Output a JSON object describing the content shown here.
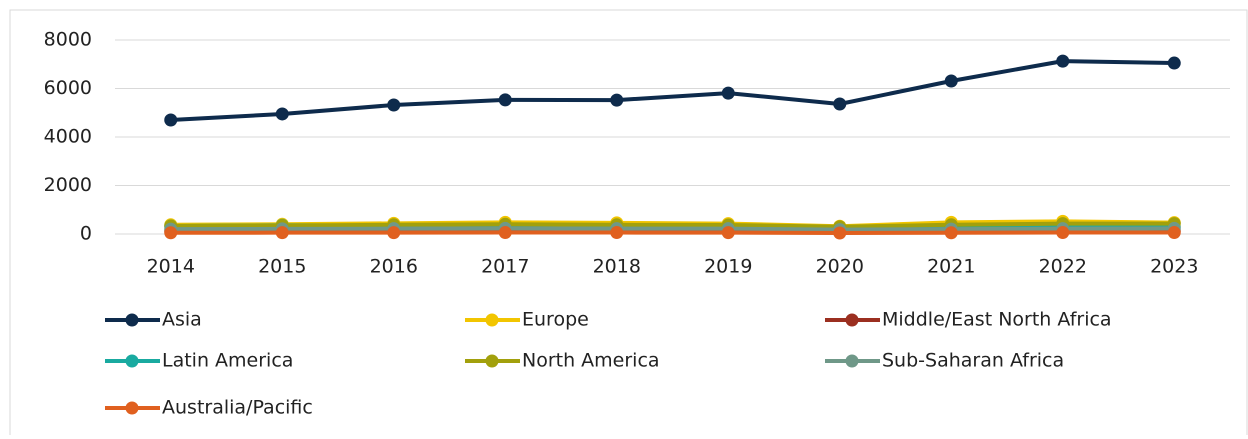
{
  "chart_data": {
    "type": "line",
    "categories": [
      "2014",
      "2015",
      "2016",
      "2017",
      "2018",
      "2019",
      "2020",
      "2021",
      "2022",
      "2023"
    ],
    "series": [
      {
        "name": "Asia",
        "color": "#0e2b4c",
        "values": [
          4700,
          4950,
          5320,
          5530,
          5520,
          5810,
          5360,
          6310,
          7130,
          7050
        ]
      },
      {
        "name": "Europe",
        "color": "#f2c500",
        "values": [
          380,
          400,
          440,
          480,
          460,
          430,
          320,
          480,
          520,
          470
        ]
      },
      {
        "name": "Middle/East North Africa",
        "color": "#9b2f20",
        "values": [
          120,
          130,
          130,
          140,
          140,
          130,
          100,
          120,
          130,
          130
        ]
      },
      {
        "name": "Latin America",
        "color": "#19aaa0",
        "values": [
          330,
          360,
          340,
          330,
          320,
          310,
          260,
          300,
          310,
          300
        ]
      },
      {
        "name": "North America",
        "color": "#a2a00c",
        "values": [
          330,
          350,
          380,
          400,
          380,
          370,
          300,
          380,
          430,
          430
        ]
      },
      {
        "name": "Sub-Saharan Africa",
        "color": "#6f9888",
        "values": [
          200,
          210,
          220,
          230,
          220,
          220,
          180,
          200,
          220,
          230
        ]
      },
      {
        "name": "Australia/Pacific",
        "color": "#e0601f",
        "values": [
          50,
          55,
          55,
          60,
          60,
          55,
          40,
          50,
          60,
          60
        ]
      }
    ],
    "ylim": [
      0,
      8000
    ],
    "yticks": [
      0,
      2000,
      4000,
      6000,
      8000
    ],
    "grid": true,
    "legend": "bottom"
  }
}
